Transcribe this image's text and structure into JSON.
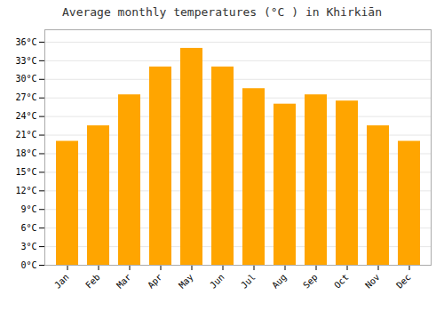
{
  "chart_data": {
    "type": "bar",
    "title": "Average monthly temperatures (°C ) in Khirkiān",
    "categories": [
      "Jan",
      "Feb",
      "Mar",
      "Apr",
      "May",
      "Jun",
      "Jul",
      "Aug",
      "Sep",
      "Oct",
      "Nov",
      "Dec"
    ],
    "values": [
      20.0,
      22.5,
      27.5,
      32.0,
      35.0,
      32.0,
      28.5,
      26.0,
      27.5,
      26.5,
      22.5,
      20.0
    ],
    "color": "#FFA500",
    "ylim": [
      0,
      38
    ],
    "yticks": [
      {
        "value": 0,
        "label": "0°C"
      },
      {
        "value": 3,
        "label": "3°C"
      },
      {
        "value": 6,
        "label": "6°C"
      },
      {
        "value": 9,
        "label": "9°C"
      },
      {
        "value": 12,
        "label": "12°C"
      },
      {
        "value": 15,
        "label": "15°C"
      },
      {
        "value": 18,
        "label": "18°C"
      },
      {
        "value": 21,
        "label": "21°C"
      },
      {
        "value": 24,
        "label": "24°C"
      },
      {
        "value": 27,
        "label": "27°C"
      },
      {
        "value": 30,
        "label": "30°C"
      },
      {
        "value": 33,
        "label": "33°C"
      },
      {
        "value": 36,
        "label": "36°C"
      }
    ],
    "grid": true
  }
}
